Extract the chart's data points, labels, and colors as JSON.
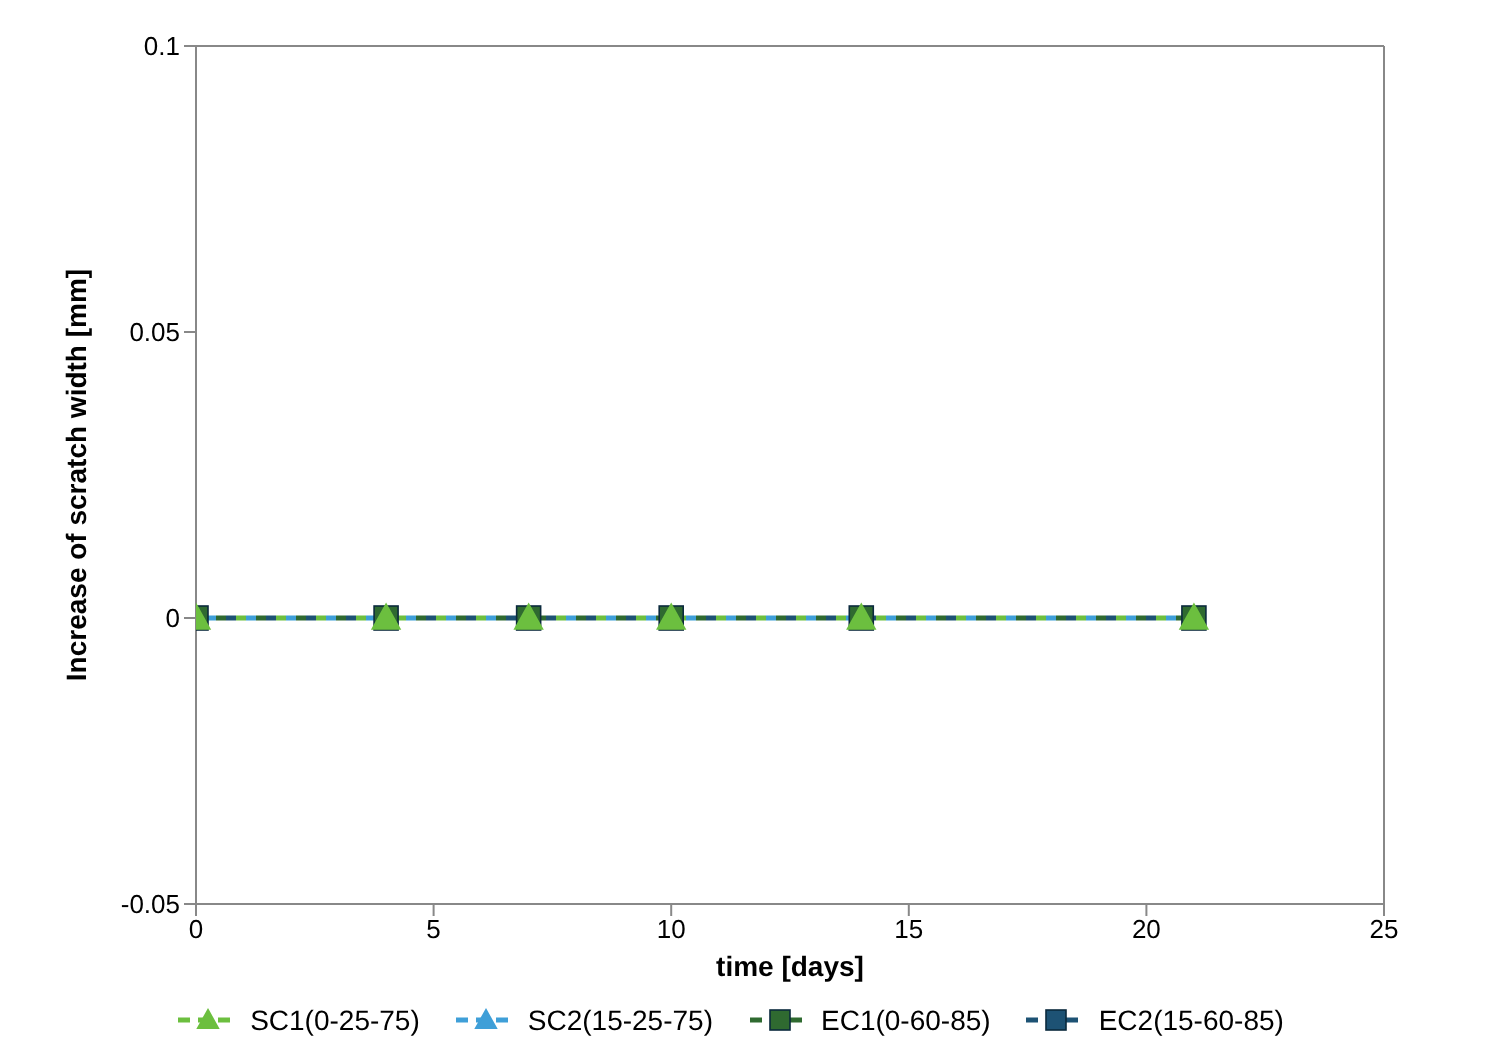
{
  "chart_data": {
    "type": "line",
    "xlabel": "time [days]",
    "ylabel": "Increase of scratch  width [mm]",
    "x": [
      0,
      4,
      7,
      10,
      14,
      21
    ],
    "series": [
      {
        "name": "SC1(0-25-75)",
        "color": "#6cbf3f",
        "values": [
          0,
          0,
          0,
          0,
          0,
          0
        ],
        "marker": "triangle"
      },
      {
        "name": "SC2(15-25-75)",
        "color": "#3f9fd8",
        "values": [
          0,
          0,
          0,
          0,
          0,
          0
        ],
        "marker": "triangle"
      },
      {
        "name": "EC1(0-60-85)",
        "color": "#2f6a30",
        "values": [
          0,
          0,
          0,
          0,
          0,
          0
        ],
        "marker": "square"
      },
      {
        "name": "EC2(15-60-85)",
        "color": "#1d5274",
        "values": [
          0,
          0,
          0,
          0,
          0,
          0
        ],
        "marker": "square"
      }
    ],
    "xlim": [
      0,
      25
    ],
    "xticks": [
      0,
      5,
      10,
      15,
      20,
      25
    ],
    "ylim": [
      -0.05,
      0.1
    ],
    "yticks": [
      -0.05,
      0,
      0.05,
      0.1
    ],
    "grid": false,
    "legend": "bottom",
    "line_style": "dashed"
  }
}
